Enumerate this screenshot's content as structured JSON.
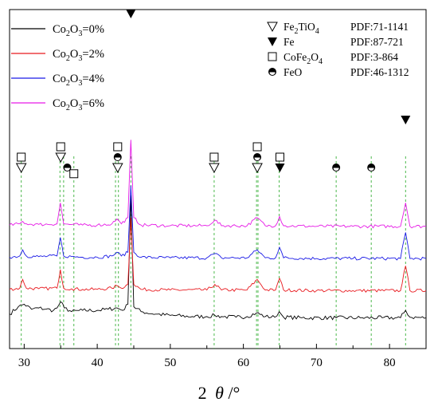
{
  "chart_data": {
    "type": "line",
    "title": "",
    "xlabel": {
      "symbol": "2",
      "theta": "θ",
      "unit": "/°"
    },
    "ylabel": "",
    "xlim": [
      28,
      85
    ],
    "xticks": [
      30,
      40,
      50,
      60,
      70,
      80
    ],
    "y_axis_ticks_shown": false,
    "grid": false,
    "legend_position": "top-left",
    "series": [
      {
        "name": "Co2O3=0%",
        "label_main": "Co",
        "label_sub1": "2",
        "label_mid": "O",
        "label_sub2": "3",
        "label_tail": "=0%",
        "color": "#000000",
        "offset": 0,
        "x": [
          28,
          29.2,
          30,
          31,
          32,
          33,
          34,
          34.5,
          35.0,
          35.5,
          36.5,
          38,
          40,
          41.5,
          42.7,
          43.5,
          44.2,
          44.6,
          45.0,
          46,
          48,
          50,
          53,
          55,
          56.1,
          57,
          59,
          60.5,
          61.8,
          63,
          64.3,
          64.9,
          65.5,
          68,
          72.7,
          76,
          79,
          81.5,
          82.2,
          82.8,
          85
        ],
        "y": [
          4,
          10,
          12,
          8,
          9,
          8,
          7,
          9,
          14,
          9,
          6,
          7,
          7,
          8,
          9,
          7,
          12,
          100,
          10,
          6,
          4,
          3,
          2,
          2,
          3,
          2,
          1.5,
          2,
          5,
          2,
          1.5,
          6,
          1.5,
          1,
          1,
          1,
          1,
          1,
          7,
          1.5,
          1
        ]
      },
      {
        "name": "Co2O3=2%",
        "label_main": "Co",
        "label_sub1": "2",
        "label_mid": "O",
        "label_sub2": "3",
        "label_tail": "=2%",
        "color": "#e8191e",
        "offset": 22,
        "x": [
          28,
          29.4,
          29.8,
          30.3,
          32,
          34.5,
          34.95,
          35.4,
          36.5,
          38,
          40,
          42.0,
          42.7,
          43.3,
          44.2,
          44.6,
          45.0,
          46,
          50,
          55,
          56.1,
          57,
          60.5,
          61.9,
          63,
          64.4,
          64.95,
          65.5,
          70,
          75,
          81.5,
          82.2,
          82.8,
          85
        ],
        "y": [
          2,
          3,
          10,
          3,
          2.5,
          3,
          18,
          3,
          2.5,
          2,
          2,
          3,
          5,
          3,
          6,
          60,
          6,
          2,
          1.5,
          1.5,
          6,
          1.5,
          1.5,
          10,
          1.5,
          1.5,
          11,
          1.5,
          1,
          1,
          1,
          21,
          1,
          1
        ]
      },
      {
        "name": "Co2O3=4%",
        "label_main": "Co",
        "label_sub1": "2",
        "label_mid": "O",
        "label_sub2": "3",
        "label_tail": "=4%",
        "color": "#1a1ae6",
        "offset": 48,
        "x": [
          28,
          29.4,
          29.8,
          30.3,
          32,
          34.5,
          34.95,
          35.4,
          36.5,
          38,
          40,
          42.0,
          42.7,
          43.3,
          44.2,
          44.6,
          45.0,
          46,
          50,
          55,
          56.1,
          57,
          60.5,
          61.9,
          63,
          64.4,
          64.95,
          65.5,
          70,
          75,
          81.5,
          82.2,
          82.8,
          85
        ],
        "y": [
          2,
          3,
          8,
          3,
          2.5,
          3,
          18,
          3,
          2.5,
          2,
          2,
          3,
          6,
          3,
          6,
          60,
          6,
          2,
          1.5,
          1.5,
          5,
          1.5,
          1.5,
          8,
          1.5,
          1.5,
          10,
          1.5,
          1,
          1,
          1,
          22,
          1,
          1
        ]
      },
      {
        "name": "Co2O3=6%",
        "label_main": "Co",
        "label_sub1": "2",
        "label_mid": "O",
        "label_sub2": "3",
        "label_tail": "=6%",
        "color": "#e619e6",
        "offset": 74,
        "x": [
          28,
          29.4,
          29.8,
          30.3,
          32,
          34.5,
          34.95,
          35.4,
          36.5,
          38,
          40,
          42.0,
          42.7,
          43.3,
          44.2,
          44.6,
          45.0,
          46,
          50,
          55,
          56.1,
          57,
          60.5,
          61.9,
          63,
          64.4,
          64.95,
          65.5,
          70,
          75,
          81.5,
          82.2,
          82.8,
          85
        ],
        "y": [
          2,
          3,
          5,
          3,
          2.5,
          3,
          20,
          3,
          2.5,
          2,
          2,
          3,
          7,
          3,
          8,
          71,
          8,
          2,
          1.5,
          1.5,
          6,
          1.5,
          1.5,
          8,
          1.5,
          1.5,
          9,
          1.5,
          1,
          1,
          1,
          20,
          1,
          1
        ]
      }
    ],
    "reference_lines": [
      29.6,
      34.9,
      35.4,
      36.8,
      42.5,
      42.9,
      44.6,
      56.0,
      61.8,
      62.0,
      64.9,
      72.7,
      77.5,
      82.2
    ],
    "markers": [
      {
        "shape": "square",
        "x": 29.6,
        "level": 1
      },
      {
        "shape": "triangle-open",
        "x": 29.6,
        "level": 0
      },
      {
        "shape": "square",
        "x": 35.0,
        "level": 2
      },
      {
        "shape": "triangle-open",
        "x": 35.0,
        "level": 1
      },
      {
        "shape": "circle-half",
        "x": 35.9,
        "level": 0
      },
      {
        "shape": "square",
        "x": 36.8,
        "level": -0.6
      },
      {
        "shape": "square",
        "x": 42.8,
        "level": 2
      },
      {
        "shape": "circle-half",
        "x": 42.8,
        "level": 1
      },
      {
        "shape": "triangle-open",
        "x": 42.8,
        "level": 0
      },
      {
        "shape": "triangle-filled",
        "x": 44.6,
        "level": 0,
        "top": true
      },
      {
        "shape": "square",
        "x": 56.0,
        "level": 1
      },
      {
        "shape": "triangle-open",
        "x": 56.0,
        "level": 0
      },
      {
        "shape": "square",
        "x": 61.9,
        "level": 2
      },
      {
        "shape": "circle-half",
        "x": 61.9,
        "level": 1
      },
      {
        "shape": "triangle-open",
        "x": 61.9,
        "level": 0
      },
      {
        "shape": "square",
        "x": 65.0,
        "level": 1
      },
      {
        "shape": "triangle-filled",
        "x": 65.0,
        "level": 0
      },
      {
        "shape": "circle-half",
        "x": 72.7,
        "level": 0
      },
      {
        "shape": "circle-half",
        "x": 77.5,
        "level": 0
      },
      {
        "shape": "triangle-filled",
        "x": 82.2,
        "level": 0,
        "high": true
      }
    ],
    "phase_legend": [
      {
        "shape": "triangle-open",
        "phase_main": "Fe",
        "phase_sub1": "2",
        "phase_mid": "TiO",
        "phase_sub2": "4",
        "pdf": "PDF:71-1141"
      },
      {
        "shape": "triangle-filled",
        "phase_main": "Fe",
        "phase_sub1": "",
        "phase_mid": "",
        "phase_sub2": "",
        "pdf": "PDF:87-721"
      },
      {
        "shape": "square",
        "phase_main": "CoFe",
        "phase_sub1": "2",
        "phase_mid": "O",
        "phase_sub2": "4",
        "pdf": "PDF:3-864"
      },
      {
        "shape": "circle-half",
        "phase_main": "FeO",
        "phase_sub1": "",
        "phase_mid": "",
        "phase_sub2": "",
        "pdf": "PDF:46-1312"
      }
    ]
  }
}
